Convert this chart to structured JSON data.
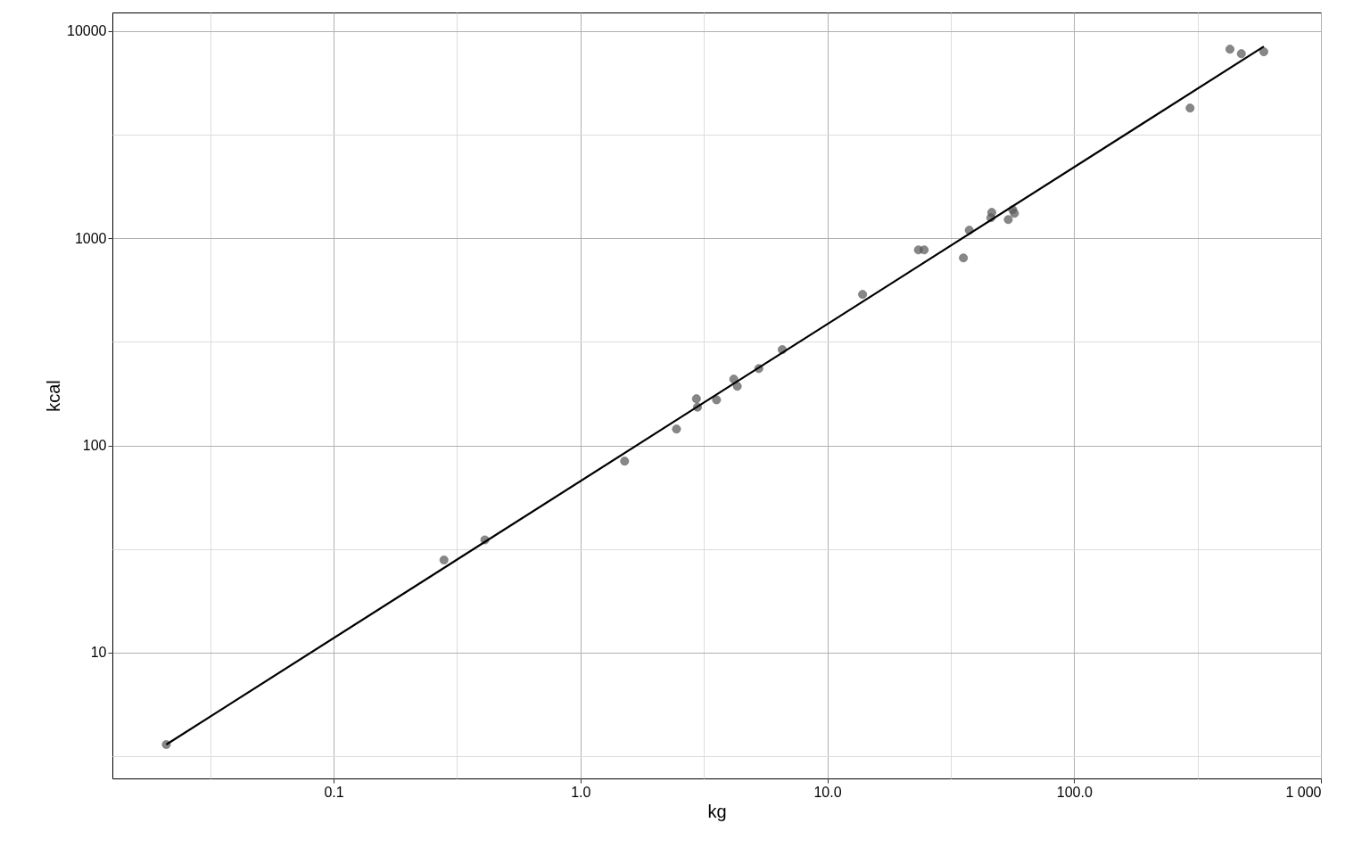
{
  "chart_data": {
    "type": "scatter",
    "xlabel": "kg",
    "ylabel": "kcal",
    "log": "xy",
    "grid": true,
    "xlim": [
      0.0127,
      1000
    ],
    "ylim": [
      2.47,
      12300
    ],
    "xticks": [
      {
        "value": 0.0316,
        "label": null
      },
      {
        "value": 0.1,
        "label": "0.1"
      },
      {
        "value": 0.316,
        "label": null
      },
      {
        "value": 1,
        "label": "1.0"
      },
      {
        "value": 3.16,
        "label": null
      },
      {
        "value": 10,
        "label": "10.0"
      },
      {
        "value": 31.6,
        "label": null
      },
      {
        "value": 100,
        "label": "100.0"
      },
      {
        "value": 316,
        "label": null
      },
      {
        "value": 1000,
        "label": "1 000"
      }
    ],
    "yticks": [
      {
        "value": 3.16,
        "label": null
      },
      10,
      {
        "value": 31.6,
        "label": null
      },
      100,
      {
        "value": 316,
        "label": null
      },
      1000,
      {
        "value": 3162,
        "label": null
      },
      10000
    ],
    "series": [
      {
        "marker": "circle",
        "color": "#5f5f5f",
        "x": [
          0.021,
          0.28,
          0.41,
          1.51,
          2.45,
          2.95,
          2.98,
          3.56,
          4.18,
          4.32,
          5.28,
          6.57,
          13.9,
          23.4,
          24.7,
          35.6,
          37.6,
          46.0,
          46.4,
          54.1,
          56.4,
          57.3,
          295,
          428,
          476,
          587
        ],
        "values": [
          3.6,
          28,
          35,
          84,
          120,
          168,
          153,
          166,
          209,
          193,
          235,
          290,
          536,
          879,
          879,
          804,
          1094,
          1256,
          1333,
          1231,
          1373,
          1320,
          4250,
          8180,
          7780,
          7950
        ]
      },
      {
        "type": "line",
        "color": "#000000",
        "x": [
          0.021,
          587
        ],
        "values": [
          3.6,
          8430
        ]
      }
    ]
  }
}
